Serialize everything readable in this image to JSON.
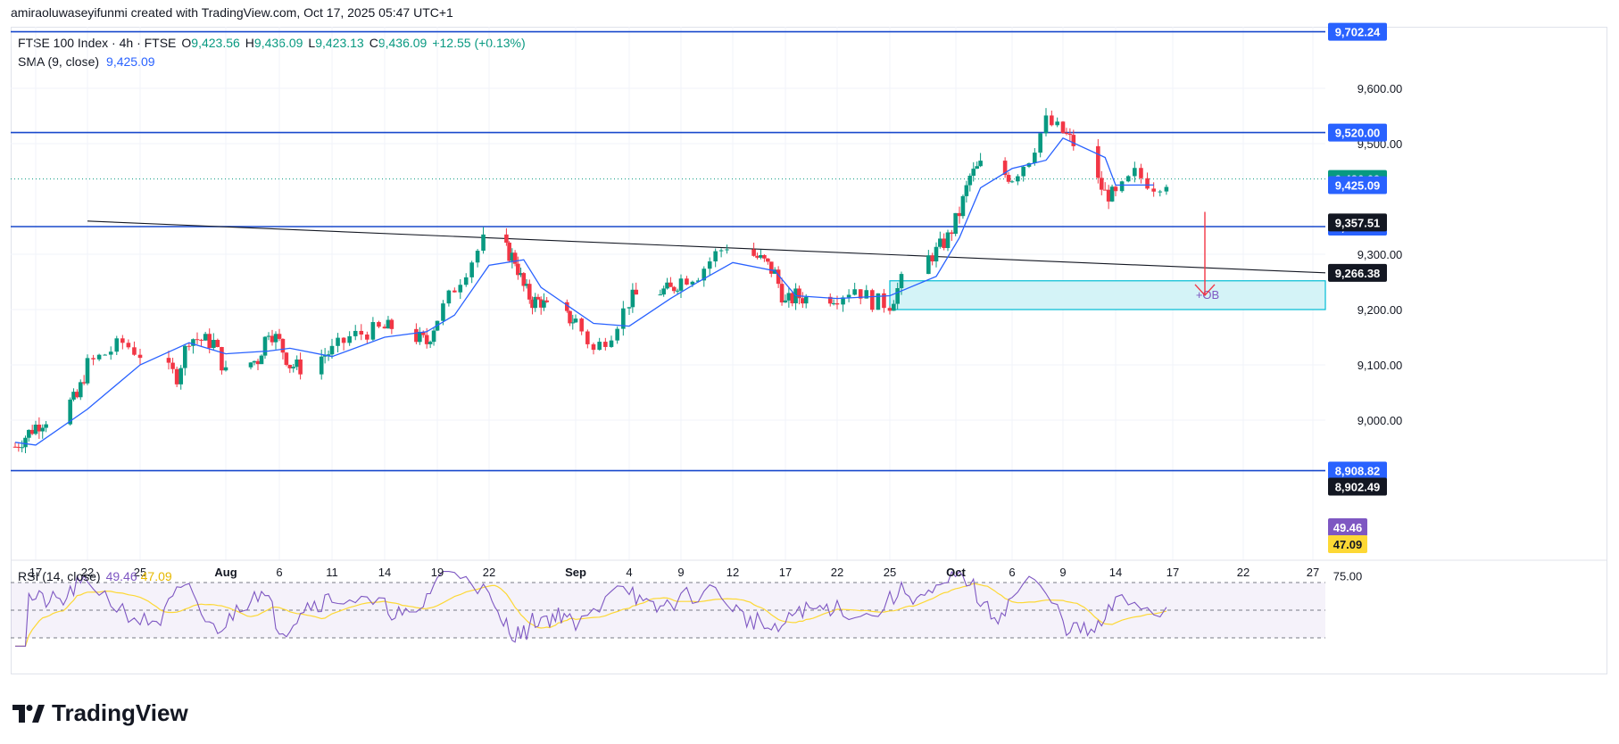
{
  "watermark": "amiraoluwaseyifunmi created with TradingView.com, Oct 17, 2025 05:47 UTC+1",
  "legend": {
    "symbol": "FTSE 100 Index · 4h · FTSE",
    "o_label": "O",
    "o": "9,423.56",
    "h_label": "H",
    "h": "9,436.09",
    "l_label": "L",
    "l": "9,423.13",
    "c_label": "C",
    "c": "9,436.09",
    "change": "+12.55 (+0.13%)",
    "sma_label": "SMA (9, close)",
    "sma_value": "9,425.09"
  },
  "rsi_legend": {
    "label": "RSI (14, close)",
    "rsi": "49.46",
    "ma": "47.09"
  },
  "colors": {
    "up": "#089981",
    "down": "#f23645",
    "sma": "#2962ff",
    "hline": "#1848cc",
    "rsi": "#7e57c2",
    "rsi_ma": "#fdd835",
    "ob_fill": "#d4f3f7",
    "ob_border": "#00bcd4",
    "arrow": "#f23645"
  },
  "brand": "TradingView",
  "ob_label": "+OB",
  "chart_data": {
    "type": "candlestick",
    "timeframe": "4h",
    "ylim": [
      8880,
      9720
    ],
    "price_ticks": [
      "9,600.00",
      "9,500.00",
      "9,300.00",
      "9,200.00",
      "9,100.00",
      "9,000.00"
    ],
    "price_tick_values": [
      9600,
      9500,
      9300,
      9200,
      9100,
      9000
    ],
    "x_ticks": [
      "17",
      "22",
      "25",
      "Aug",
      "6",
      "11",
      "14",
      "19",
      "22",
      "Sep",
      "4",
      "9",
      "12",
      "17",
      "22",
      "25",
      "Oct",
      "6",
      "9",
      "14",
      "17",
      "22",
      "27"
    ],
    "x_tick_bold": [
      "Aug",
      "Sep",
      "Oct"
    ],
    "horizontal_levels": [
      {
        "value": 9702.24,
        "label": "9,702.24",
        "kind": "blue"
      },
      {
        "value": 9520.0,
        "label": "9,520.00",
        "kind": "blue"
      },
      {
        "value": 9350.0,
        "label": "9,350.00",
        "kind": "blue"
      },
      {
        "value": 8908.82,
        "label": "8,908.82",
        "kind": "blue"
      }
    ],
    "axis_markers": [
      {
        "value": 9436.09,
        "label": "9,436.09",
        "kind": "green"
      },
      {
        "value": 9425.09,
        "label": "9,425.09",
        "kind": "blue"
      },
      {
        "value": 9357.51,
        "label": "9,357.51",
        "kind": "black"
      },
      {
        "value": 9266.38,
        "label": "9,266.38",
        "kind": "black"
      },
      {
        "value": 8902.49,
        "label": "8,902.49",
        "kind": "black"
      }
    ],
    "trendline": {
      "x": [
        "Jul 22",
        "Oct 27"
      ],
      "y": [
        9360,
        9266.38
      ]
    },
    "order_block": {
      "x_start": "Sep 25",
      "x_end": "Oct 27",
      "y": [
        9200,
        9252
      ],
      "label": "+OB"
    },
    "projection_arrow": {
      "x": "Oct 19",
      "y": [
        9425,
        9242
      ]
    },
    "close_path": [
      [
        "Jul 15",
        8952
      ],
      [
        "Jul 17",
        8990
      ],
      [
        "Jul 21",
        9040
      ],
      [
        "Jul 22",
        9100
      ],
      [
        "Jul 24",
        9140
      ],
      [
        "Jul 25",
        9120
      ],
      [
        "Jul 28",
        9080
      ],
      [
        "Jul 29",
        9150
      ],
      [
        "Jul 31",
        9140
      ],
      [
        "Aug 1",
        9085
      ],
      [
        "Aug 4",
        9110
      ],
      [
        "Aug 5",
        9165
      ],
      [
        "Aug 6",
        9140
      ],
      [
        "Aug 7",
        9100
      ],
      [
        "Aug 8",
        9095
      ],
      [
        "Aug 11",
        9125
      ],
      [
        "Aug 12",
        9150
      ],
      [
        "Aug 13",
        9160
      ],
      [
        "Aug 15",
        9170
      ],
      [
        "Aug 18",
        9140
      ],
      [
        "Aug 19",
        9185
      ],
      [
        "Aug 20",
        9240
      ],
      [
        "Aug 21",
        9290
      ],
      [
        "Aug 22",
        9340
      ],
      [
        "Aug 25",
        9290
      ],
      [
        "Aug 26",
        9240
      ],
      [
        "Aug 27",
        9215
      ],
      [
        "Aug 28",
        9215
      ],
      [
        "Aug 29",
        9195
      ],
      [
        "Sep 1",
        9180
      ],
      [
        "Sep 2",
        9125
      ],
      [
        "Sep 3",
        9160
      ],
      [
        "Sep 4",
        9215
      ],
      [
        "Sep 5",
        9230
      ],
      [
        "Sep 8",
        9235
      ],
      [
        "Sep 9",
        9255
      ],
      [
        "Sep 10",
        9265
      ],
      [
        "Sep 11",
        9300
      ],
      [
        "Sep 12",
        9325
      ],
      [
        "Sep 15",
        9285
      ],
      [
        "Sep 16",
        9265
      ],
      [
        "Sep 17",
        9210
      ],
      [
        "Sep 18",
        9225
      ],
      [
        "Sep 19",
        9220
      ],
      [
        "Sep 22",
        9225
      ],
      [
        "Sep 23",
        9240
      ],
      [
        "Sep 24",
        9215
      ],
      [
        "Sep 25",
        9210
      ],
      [
        "Sep 26",
        9250
      ],
      [
        "Sep 29",
        9305
      ],
      [
        "Sep 30",
        9330
      ],
      [
        "Oct 1",
        9375
      ],
      [
        "Oct 2",
        9440
      ],
      [
        "Oct 3",
        9460
      ],
      [
        "Oct 6",
        9440
      ],
      [
        "Oct 7",
        9475
      ],
      [
        "Oct 8",
        9540
      ],
      [
        "Oct 9",
        9520
      ],
      [
        "Oct 10",
        9500
      ],
      [
        "Oct 13",
        9410
      ],
      [
        "Oct 14",
        9405
      ],
      [
        "Oct 15",
        9445
      ],
      [
        "Oct 16",
        9425
      ],
      [
        "Oct 16 20:00",
        9436.09
      ]
    ],
    "sma_path": [
      [
        "Jul 15",
        8960
      ],
      [
        "Jul 17",
        8955
      ],
      [
        "Jul 22",
        9020
      ],
      [
        "Jul 25",
        9100
      ],
      [
        "Jul 29",
        9140
      ],
      [
        "Aug 1",
        9120
      ],
      [
        "Aug 5",
        9125
      ],
      [
        "Aug 7",
        9130
      ],
      [
        "Aug 11",
        9115
      ],
      [
        "Aug 14",
        9150
      ],
      [
        "Aug 18",
        9160
      ],
      [
        "Aug 20",
        9190
      ],
      [
        "Aug 22",
        9280
      ],
      [
        "Aug 26",
        9290
      ],
      [
        "Aug 28",
        9240
      ],
      [
        "Sep 2",
        9175
      ],
      [
        "Sep 4",
        9170
      ],
      [
        "Sep 8",
        9220
      ],
      [
        "Sep 10",
        9250
      ],
      [
        "Sep 12",
        9285
      ],
      [
        "Sep 16",
        9270
      ],
      [
        "Sep 18",
        9225
      ],
      [
        "Sep 22",
        9220
      ],
      [
        "Sep 25",
        9225
      ],
      [
        "Sep 29",
        9260
      ],
      [
        "Oct 1",
        9330
      ],
      [
        "Oct 3",
        9420
      ],
      [
        "Oct 6",
        9455
      ],
      [
        "Oct 8",
        9470
      ],
      [
        "Oct 9",
        9510
      ],
      [
        "Oct 13",
        9475
      ],
      [
        "Oct 14",
        9425
      ],
      [
        "Oct 16",
        9425.09
      ]
    ],
    "rsi": {
      "levels": [
        70,
        50,
        30
      ],
      "tick_label": "75.00",
      "last": 49.46,
      "ma_last": 47.09
    }
  }
}
